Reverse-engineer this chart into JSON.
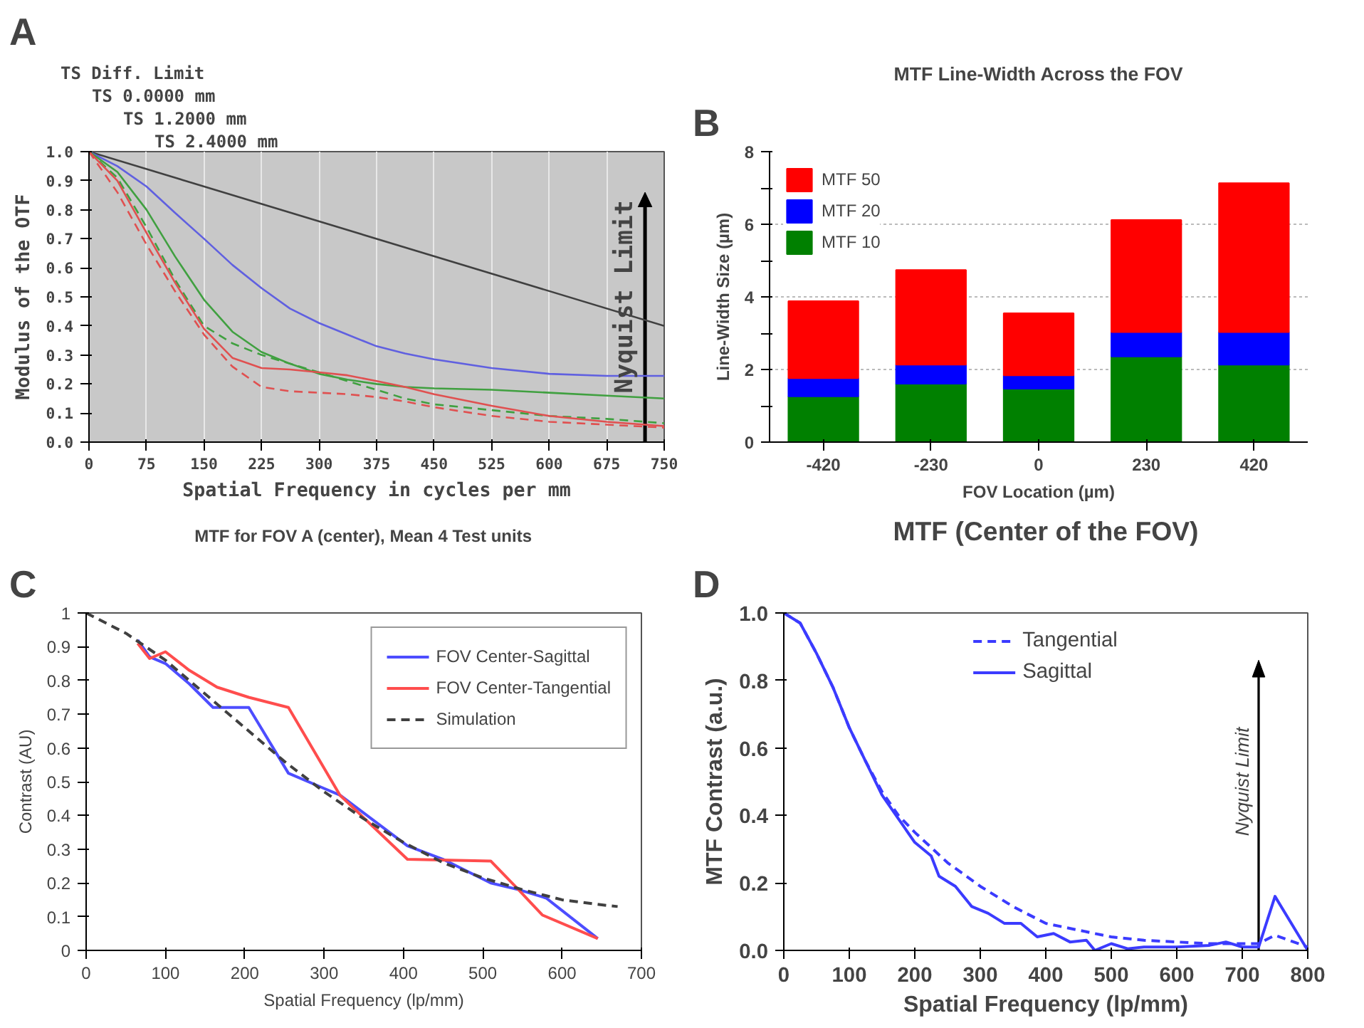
{
  "chart_data": [
    {
      "type": "line",
      "xlabel": "Spatial Frequency in cycles per mm",
      "ylabel": "Modulus of the OTF",
      "x": [
        0,
        37,
        75,
        112,
        150,
        187,
        225,
        262,
        300,
        337,
        375,
        412,
        450,
        525,
        600,
        675,
        750
      ],
      "xlim": [
        0,
        750
      ],
      "xticks": [
        0,
        75,
        150,
        225,
        300,
        375,
        450,
        525,
        600,
        675,
        750
      ],
      "ylim": [
        0,
        1
      ],
      "yticks": [
        {
          "value": 0,
          "label": "0.0"
        },
        0.1,
        0.2,
        0.3,
        0.4,
        0.5,
        0.6,
        0.7,
        0.8,
        0.9,
        {
          "value": 1,
          "label": "1.0"
        }
      ],
      "grid": "x",
      "series": [
        {
          "color": "#404040",
          "x": [
            0,
            750
          ],
          "values": [
            1,
            0.4
          ]
        },
        {
          "color": "#6060e0",
          "values": [
            1,
            0.95,
            0.88,
            0.79,
            0.7,
            0.61,
            0.53,
            0.46,
            0.41,
            0.37,
            0.33,
            0.305,
            0.285,
            0.255,
            0.235,
            0.228,
            0.228
          ]
        },
        {
          "color": "#40a040",
          "values": [
            1,
            0.93,
            0.8,
            0.64,
            0.49,
            0.38,
            0.31,
            0.27,
            0.235,
            0.215,
            0.2,
            0.19,
            0.185,
            0.18,
            0.17,
            0.16,
            0.15
          ]
        },
        {
          "color": "#40a040",
          "line_style": "dashed",
          "values": [
            1,
            0.91,
            0.74,
            0.56,
            0.4,
            0.34,
            0.3,
            0.27,
            0.24,
            0.21,
            0.18,
            0.15,
            0.13,
            0.11,
            0.09,
            0.08,
            0.065
          ]
        },
        {
          "color": "#e05050",
          "values": [
            1,
            0.9,
            0.72,
            0.55,
            0.39,
            0.29,
            0.255,
            0.25,
            0.24,
            0.23,
            0.21,
            0.19,
            0.165,
            0.125,
            0.09,
            0.07,
            0.055
          ]
        },
        {
          "color": "#e05050",
          "line_style": "dashed",
          "values": [
            1,
            0.86,
            0.68,
            0.52,
            0.37,
            0.26,
            0.19,
            0.175,
            0.17,
            0.165,
            0.155,
            0.14,
            0.12,
            0.09,
            0.07,
            0.06,
            0.05
          ]
        }
      ],
      "ref_lines": [
        {
          "axis": "x",
          "value": 725,
          "label": "Nyquist Limit",
          "color": "#000000"
        }
      ],
      "annotations": [
        "A",
        "TS Diff. Limit",
        "TS 0.0000 mm",
        "TS 1.2000 mm",
        "TS 2.4000 mm"
      ]
    },
    {
      "type": "bar",
      "stacked": true,
      "title": "MTF Line-Width Across the FOV",
      "xlabel": "FOV Location (µm)",
      "ylabel": "Line-Width Size (µm)",
      "categories": [
        "-420",
        "-230",
        "0",
        "230",
        "420"
      ],
      "ylim": [
        0,
        8
      ],
      "yticks": [
        0,
        {
          "value": 1,
          "label": null
        },
        2,
        {
          "value": 3,
          "label": null
        },
        4,
        {
          "value": 5,
          "label": null
        },
        6,
        {
          "value": 7,
          "label": null
        },
        8
      ],
      "grid": "y",
      "legend": "top left",
      "series": [
        {
          "name": "MTF 10",
          "color": "#008000",
          "values": [
            1.26,
            1.61,
            1.47,
            2.36,
            2.13
          ]
        },
        {
          "name": "MTF 20",
          "color": "#0000ff",
          "values": [
            0.5,
            0.52,
            0.37,
            0.67,
            0.9
          ]
        },
        {
          "name": "MTF 50",
          "color": "#ff0000",
          "values": [
            2.12,
            2.61,
            1.71,
            3.09,
            4.1
          ]
        }
      ],
      "annotations": [
        "B"
      ]
    },
    {
      "type": "line",
      "title": "MTF for FOV A (center), Mean 4 Test units",
      "xlabel": "Spatial Frequency (lp/mm)",
      "ylabel": "Contrast (AU)",
      "xlim": [
        0,
        700
      ],
      "xticks": [
        0,
        100,
        200,
        300,
        400,
        500,
        600,
        700
      ],
      "ylim": [
        0,
        1
      ],
      "yticks": [
        0,
        0.1,
        0.2,
        0.3,
        0.4,
        0.5,
        0.6,
        0.7,
        0.8,
        0.9,
        1
      ],
      "legend": "top right",
      "series": [
        {
          "name": "FOV Center-Sagittal",
          "color": "#4d4dff",
          "x": [
            65,
            80,
            100,
            130,
            160,
            205,
            255,
            300,
            320,
            405,
            450,
            510,
            545,
            580,
            645
          ],
          "values": [
            0.92,
            0.87,
            0.85,
            0.79,
            0.72,
            0.72,
            0.525,
            0.48,
            0.46,
            0.31,
            0.27,
            0.2,
            0.18,
            0.155,
            0.035
          ]
        },
        {
          "name": "FOV Center-Tangential",
          "color": "#ff4d4d",
          "x": [
            65,
            80,
            100,
            130,
            165,
            205,
            255,
            320,
            405,
            510,
            545,
            575,
            645
          ],
          "values": [
            0.91,
            0.865,
            0.885,
            0.83,
            0.78,
            0.75,
            0.72,
            0.46,
            0.27,
            0.265,
            0.18,
            0.105,
            0.035
          ]
        },
        {
          "name": "Simulation",
          "color": "#404040",
          "line_style": "dashed",
          "x": [
            0,
            50,
            100,
            150,
            200,
            250,
            300,
            350,
            400,
            450,
            500,
            550,
            600,
            650,
            670
          ],
          "values": [
            1,
            0.94,
            0.86,
            0.76,
            0.66,
            0.56,
            0.47,
            0.39,
            0.32,
            0.26,
            0.215,
            0.18,
            0.15,
            0.135,
            0.13
          ]
        }
      ],
      "annotations": [
        "C"
      ]
    },
    {
      "type": "line",
      "title": "MTF (Center of the FOV)",
      "xlabel": "Spatial Frequency (lp/mm)",
      "ylabel": "MTF Contrast (a.u.)",
      "xlim": [
        0,
        800
      ],
      "xticks": [
        0,
        100,
        200,
        300,
        400,
        500,
        600,
        700,
        800
      ],
      "ylim": [
        0,
        1
      ],
      "yticks": [
        {
          "value": 0,
          "label": "0.0"
        },
        0.2,
        0.4,
        0.6,
        0.8,
        {
          "value": 1,
          "label": "1.0"
        }
      ],
      "legend": "top",
      "series": [
        {
          "name": "Tangential",
          "color": "#3b3bff",
          "line_style": "dashed",
          "x": [
            0,
            25,
            50,
            75,
            100,
            125,
            150,
            175,
            200,
            250,
            300,
            350,
            400,
            450,
            500,
            550,
            600,
            650,
            700,
            725,
            750,
            800
          ],
          "values": [
            1,
            0.97,
            0.88,
            0.78,
            0.66,
            0.56,
            0.47,
            0.4,
            0.35,
            0.26,
            0.19,
            0.13,
            0.08,
            0.06,
            0.04,
            0.03,
            0.025,
            0.02,
            0.02,
            0.02,
            0.045,
            0.01
          ]
        },
        {
          "name": "Sagittal",
          "color": "#3b3bff",
          "x": [
            0,
            25,
            50,
            75,
            100,
            125,
            150,
            175,
            200,
            225,
            237,
            262,
            287,
            312,
            337,
            362,
            387,
            412,
            437,
            462,
            475,
            500,
            525,
            550,
            600,
            650,
            675,
            700,
            725,
            750,
            800
          ],
          "values": [
            1,
            0.97,
            0.88,
            0.78,
            0.66,
            0.56,
            0.46,
            0.39,
            0.32,
            0.28,
            0.22,
            0.19,
            0.13,
            0.11,
            0.08,
            0.08,
            0.04,
            0.05,
            0.025,
            0.03,
            0,
            0.02,
            0.005,
            0.01,
            0.01,
            0.015,
            0.025,
            0.01,
            0.01,
            0.16,
            0
          ]
        }
      ],
      "ref_lines": [
        {
          "axis": "x",
          "value": 725,
          "label": "Nyquist Limit",
          "color": "#000000"
        }
      ],
      "annotations": [
        "D"
      ]
    }
  ]
}
